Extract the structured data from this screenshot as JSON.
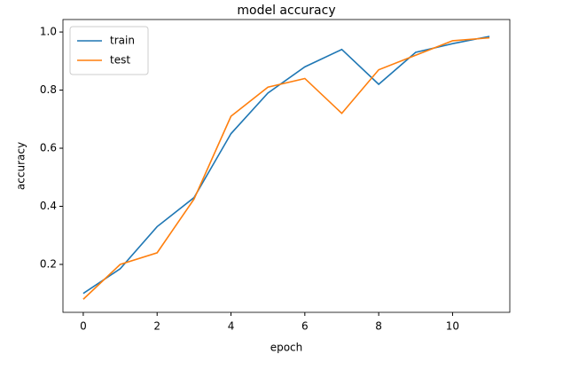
{
  "chart_data": {
    "type": "line",
    "title": "model accuracy",
    "x_label": "epoch",
    "y_label": "accuracy",
    "x": [
      0,
      1,
      2,
      3,
      4,
      5,
      6,
      7,
      8,
      9,
      10,
      11
    ],
    "series": [
      {
        "name": "train",
        "color": "#1f77b4",
        "values": [
          0.1,
          0.185,
          0.33,
          0.43,
          0.65,
          0.79,
          0.88,
          0.94,
          0.82,
          0.93,
          0.96,
          0.985
        ]
      },
      {
        "name": "test",
        "color": "#ff7f0e",
        "values": [
          0.08,
          0.2,
          0.24,
          0.425,
          0.71,
          0.81,
          0.84,
          0.72,
          0.87,
          0.92,
          0.97,
          0.98
        ]
      }
    ],
    "xlim": [
      -0.55,
      11.55
    ],
    "xticks": [
      0,
      2,
      4,
      6,
      8,
      10
    ],
    "ylim": [
      0.035,
      1.043
    ],
    "yticks": [
      0.2,
      0.4,
      0.6,
      0.8,
      {
        "value": 1.0,
        "label": "1.0"
      }
    ],
    "legend": "upper-left",
    "grid": false
  }
}
